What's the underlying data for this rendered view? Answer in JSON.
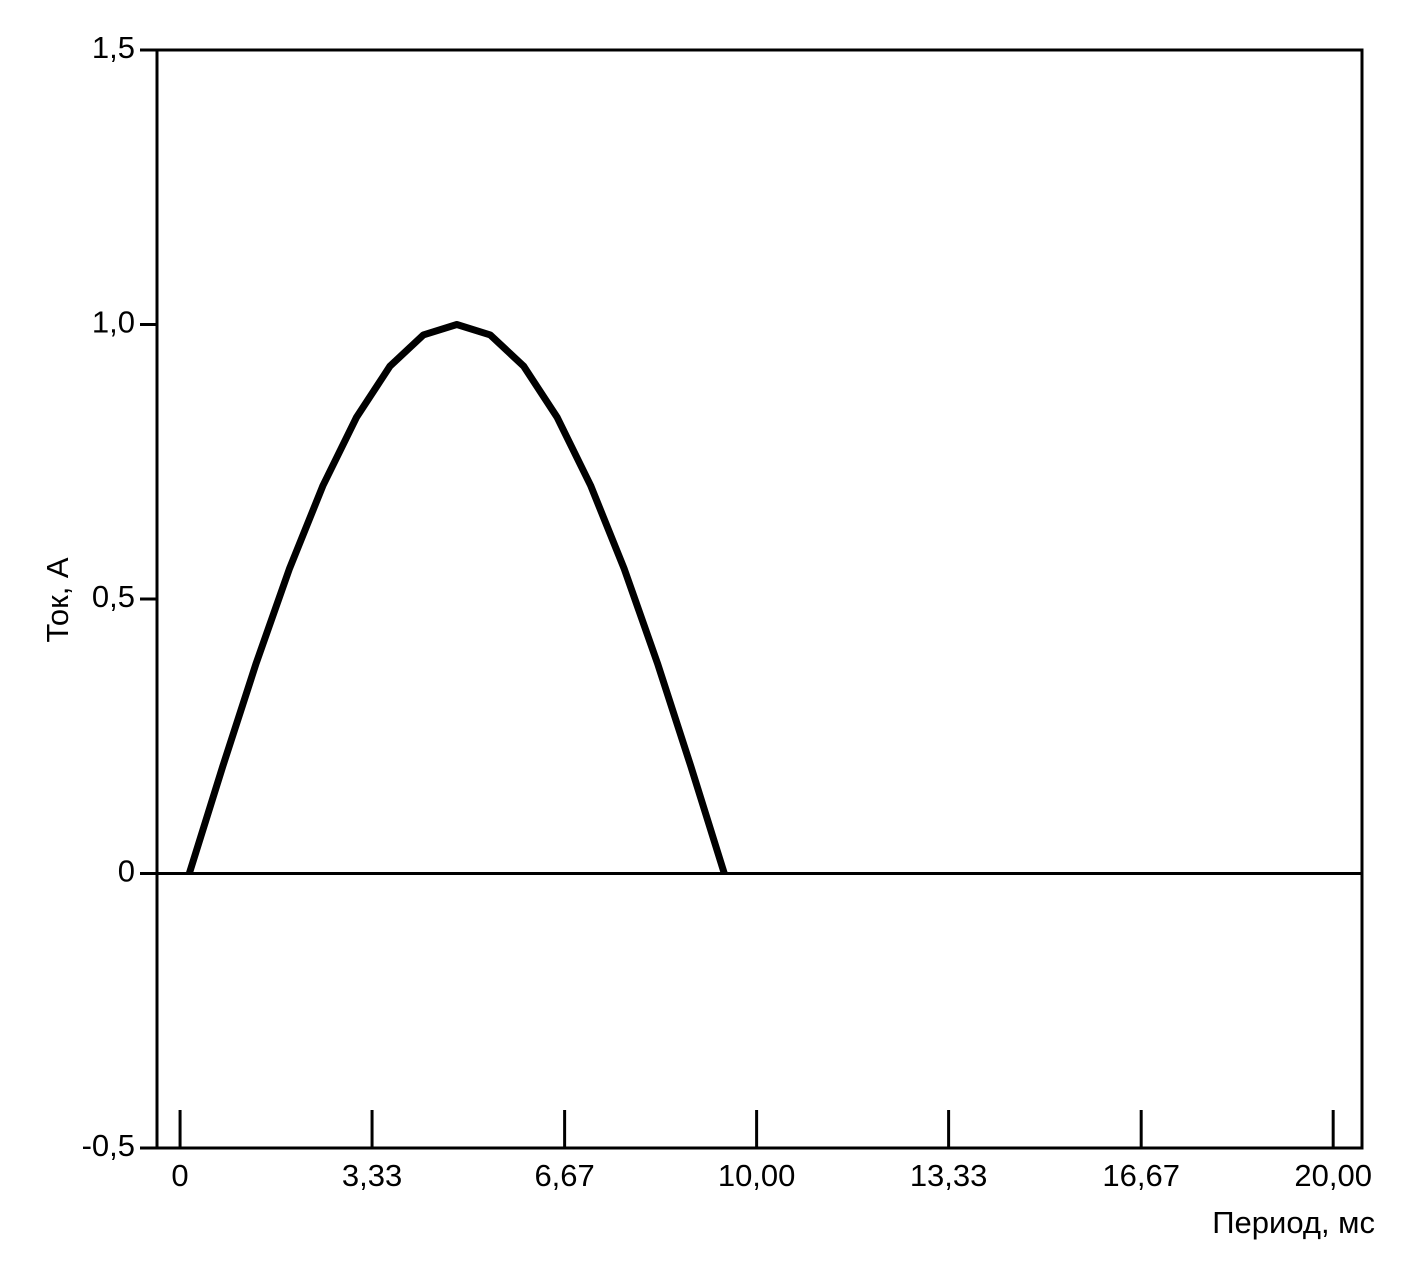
{
  "chart_data": {
    "type": "line",
    "xlabel": "Период, мс",
    "ylabel": "Ток, А",
    "x": [
      0.16,
      0.74,
      1.32,
      1.9,
      2.48,
      3.06,
      3.64,
      4.22,
      4.8,
      5.38,
      5.96,
      6.54,
      7.12,
      7.7,
      8.28,
      8.86,
      9.44
    ],
    "series": [
      {
        "color": "#000000",
        "values": [
          0,
          0.195,
          0.383,
          0.556,
          0.707,
          0.831,
          0.924,
          0.981,
          1.0,
          0.981,
          0.924,
          0.831,
          0.707,
          0.556,
          0.383,
          0.195,
          0
        ]
      }
    ],
    "xlim": [
      -0.4,
      20.5
    ],
    "ylim": [
      -0.5,
      1.5
    ],
    "xticks": [
      0,
      {
        "value": 3.33,
        "label": "3,33"
      },
      {
        "value": 6.67,
        "label": "6,67"
      },
      {
        "value": 10,
        "label": "10,00"
      },
      {
        "value": 13.33,
        "label": "13,33"
      },
      {
        "value": 16.67,
        "label": "16,67"
      },
      {
        "value": 20,
        "label": "20,00"
      }
    ],
    "yticks": [
      {
        "value": -0.5,
        "label": "-0,5"
      },
      0,
      {
        "value": 0.5,
        "label": "0,5"
      },
      {
        "value": 1,
        "label": "1,0"
      },
      {
        "value": 1.5,
        "label": "1,5"
      }
    ],
    "grid": false
  }
}
